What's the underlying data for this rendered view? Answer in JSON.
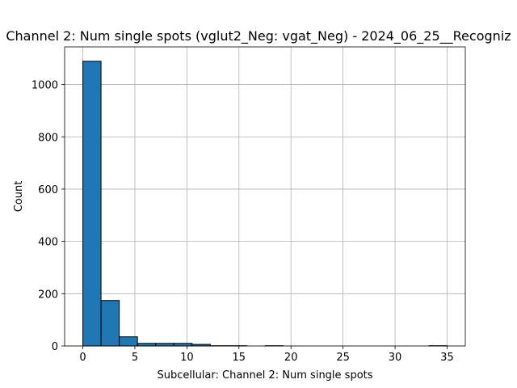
{
  "chart_data": {
    "type": "bar",
    "title": "Channel 2: Num single spots (vglut2_Neg: vgat_Neg) - 2024_06_25__Recogniz",
    "xlabel": "Subcellular: Channel 2: Num single spots",
    "ylabel": "Count",
    "xlim": [
      -1.75,
      36.75
    ],
    "ylim": [
      0,
      1144
    ],
    "xticks": [
      0,
      5,
      10,
      15,
      20,
      25,
      30,
      35
    ],
    "yticks": [
      0,
      200,
      400,
      600,
      800,
      1000
    ],
    "grid": true,
    "bins": [
      {
        "start": 0.0,
        "end": 1.75,
        "count": 1089
      },
      {
        "start": 1.75,
        "end": 3.5,
        "count": 174
      },
      {
        "start": 3.5,
        "end": 5.25,
        "count": 35
      },
      {
        "start": 5.25,
        "end": 7.0,
        "count": 10
      },
      {
        "start": 7.0,
        "end": 8.75,
        "count": 10
      },
      {
        "start": 8.75,
        "end": 10.5,
        "count": 10
      },
      {
        "start": 10.5,
        "end": 12.25,
        "count": 6
      },
      {
        "start": 12.25,
        "end": 14.0,
        "count": 1
      },
      {
        "start": 14.0,
        "end": 15.75,
        "count": 1
      },
      {
        "start": 15.75,
        "end": 17.5,
        "count": 0
      },
      {
        "start": 17.5,
        "end": 19.25,
        "count": 1
      },
      {
        "start": 19.25,
        "end": 21.0,
        "count": 0
      },
      {
        "start": 21.0,
        "end": 22.75,
        "count": 0
      },
      {
        "start": 22.75,
        "end": 24.5,
        "count": 0
      },
      {
        "start": 24.5,
        "end": 26.25,
        "count": 0
      },
      {
        "start": 26.25,
        "end": 28.0,
        "count": 0
      },
      {
        "start": 28.0,
        "end": 29.75,
        "count": 0
      },
      {
        "start": 29.75,
        "end": 31.5,
        "count": 0
      },
      {
        "start": 31.5,
        "end": 33.25,
        "count": 0
      },
      {
        "start": 33.25,
        "end": 35.0,
        "count": 1
      }
    ],
    "colors": {
      "bar": "#1f77b4",
      "edge": "#000000",
      "grid": "#b0b0b0"
    }
  }
}
